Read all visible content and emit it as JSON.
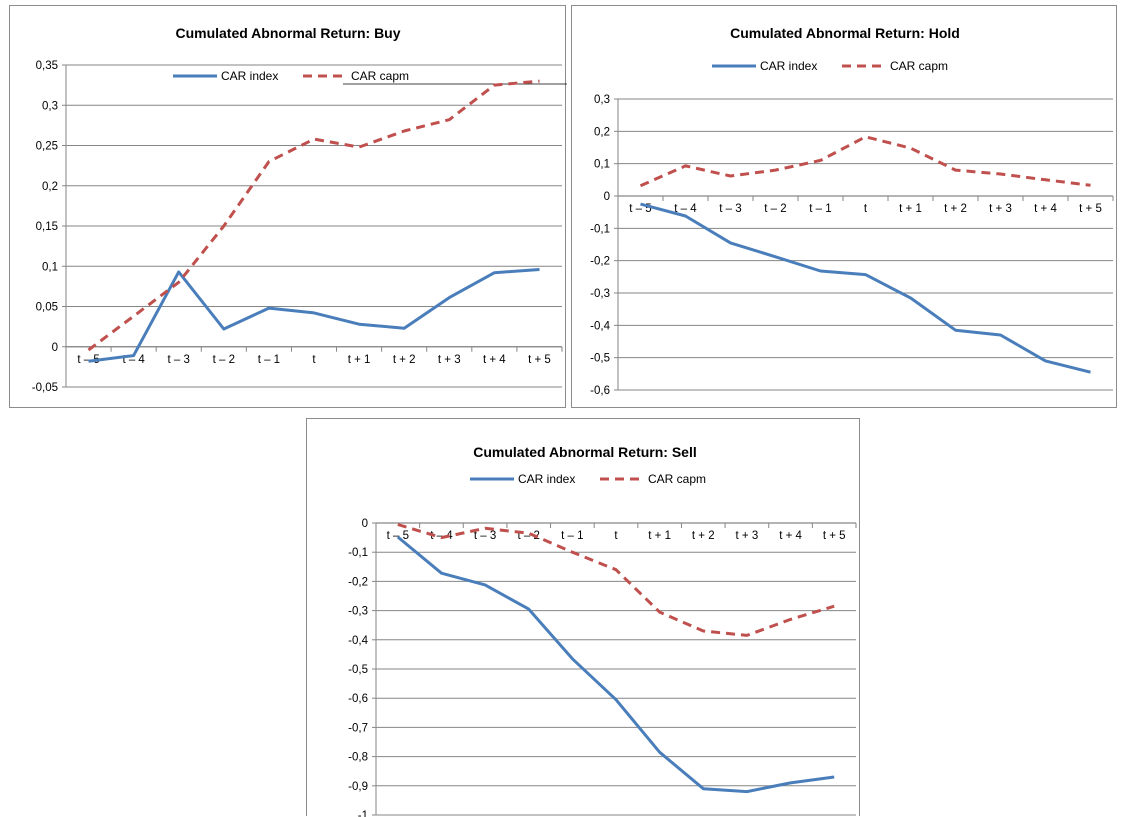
{
  "colors": {
    "index": "#4a7ebb",
    "capm": "#c0504d",
    "grid": "#868686",
    "axis": "#868686"
  },
  "chart_data": [
    {
      "type": "line",
      "title": "Cumulated Abnormal Return: Buy",
      "categories": [
        "t – 5",
        "t – 4",
        "t – 3",
        "t – 2",
        "t – 1",
        "t",
        "t + 1",
        "t + 2",
        "t + 3",
        "t + 4",
        "t + 5"
      ],
      "series": [
        {
          "name": "CAR index",
          "style": "solid",
          "values": [
            -0.018,
            -0.011,
            0.093,
            0.022,
            0.048,
            0.042,
            0.028,
            0.023,
            0.061,
            0.092,
            0.096
          ]
        },
        {
          "name": "CAR capm",
          "style": "dashed",
          "values": [
            -0.004,
            0.038,
            0.08,
            0.15,
            0.23,
            0.258,
            0.248,
            0.268,
            0.282,
            0.325,
            0.33
          ]
        }
      ],
      "y_ticks": [
        "0,35",
        "0,3",
        "0,25",
        "0,2",
        "0,15",
        "0,1",
        "0,05",
        "0",
        "-0,05"
      ],
      "ylim": [
        -0.05,
        0.35
      ],
      "grid": true,
      "legend_position": "top"
    },
    {
      "type": "line",
      "title": "Cumulated Abnormal Return: Hold",
      "categories": [
        "t – 5",
        "t – 4",
        "t – 3",
        "t – 2",
        "t – 1",
        "t",
        "t + 1",
        "t + 2",
        "t + 3",
        "t + 4",
        "t + 5"
      ],
      "series": [
        {
          "name": "CAR index",
          "style": "solid",
          "values": [
            -0.025,
            -0.062,
            -0.145,
            -0.188,
            -0.232,
            -0.243,
            -0.315,
            -0.415,
            -0.43,
            -0.51,
            -0.545
          ]
        },
        {
          "name": "CAR capm",
          "style": "dashed",
          "values": [
            0.032,
            0.093,
            0.062,
            0.08,
            0.11,
            0.183,
            0.148,
            0.08,
            0.068,
            0.05,
            0.033
          ]
        }
      ],
      "y_ticks": [
        "0,3",
        "0,2",
        "0,1",
        "0",
        "-0,1",
        "-0,2",
        "-0,3",
        "-0,4",
        "-0,5",
        "-0,6"
      ],
      "ylim": [
        -0.6,
        0.3
      ],
      "grid": true,
      "legend_position": "top"
    },
    {
      "type": "line",
      "title": "Cumulated Abnormal Return: Sell",
      "categories": [
        "t – 5",
        "t – 4",
        "t – 3",
        "t – 2",
        "t – 1",
        "t",
        "t + 1",
        "t + 2",
        "t + 3",
        "t + 4",
        "t + 5"
      ],
      "series": [
        {
          "name": "CAR index",
          "style": "solid",
          "values": [
            -0.048,
            -0.172,
            -0.212,
            -0.295,
            -0.465,
            -0.605,
            -0.785,
            -0.91,
            -0.92,
            -0.89,
            -0.87
          ]
        },
        {
          "name": "CAR capm",
          "style": "dashed",
          "values": [
            -0.005,
            -0.05,
            -0.018,
            -0.035,
            -0.1,
            -0.16,
            -0.305,
            -0.37,
            -0.385,
            -0.33,
            -0.285
          ]
        }
      ],
      "y_ticks": [
        "0",
        "-0,1",
        "-0,2",
        "-0,3",
        "-0,4",
        "-0,5",
        "-0,6",
        "-0,7",
        "-0,8",
        "-0,9",
        "-1"
      ],
      "ylim": [
        -1,
        0
      ],
      "grid": true,
      "legend_position": "top"
    }
  ]
}
